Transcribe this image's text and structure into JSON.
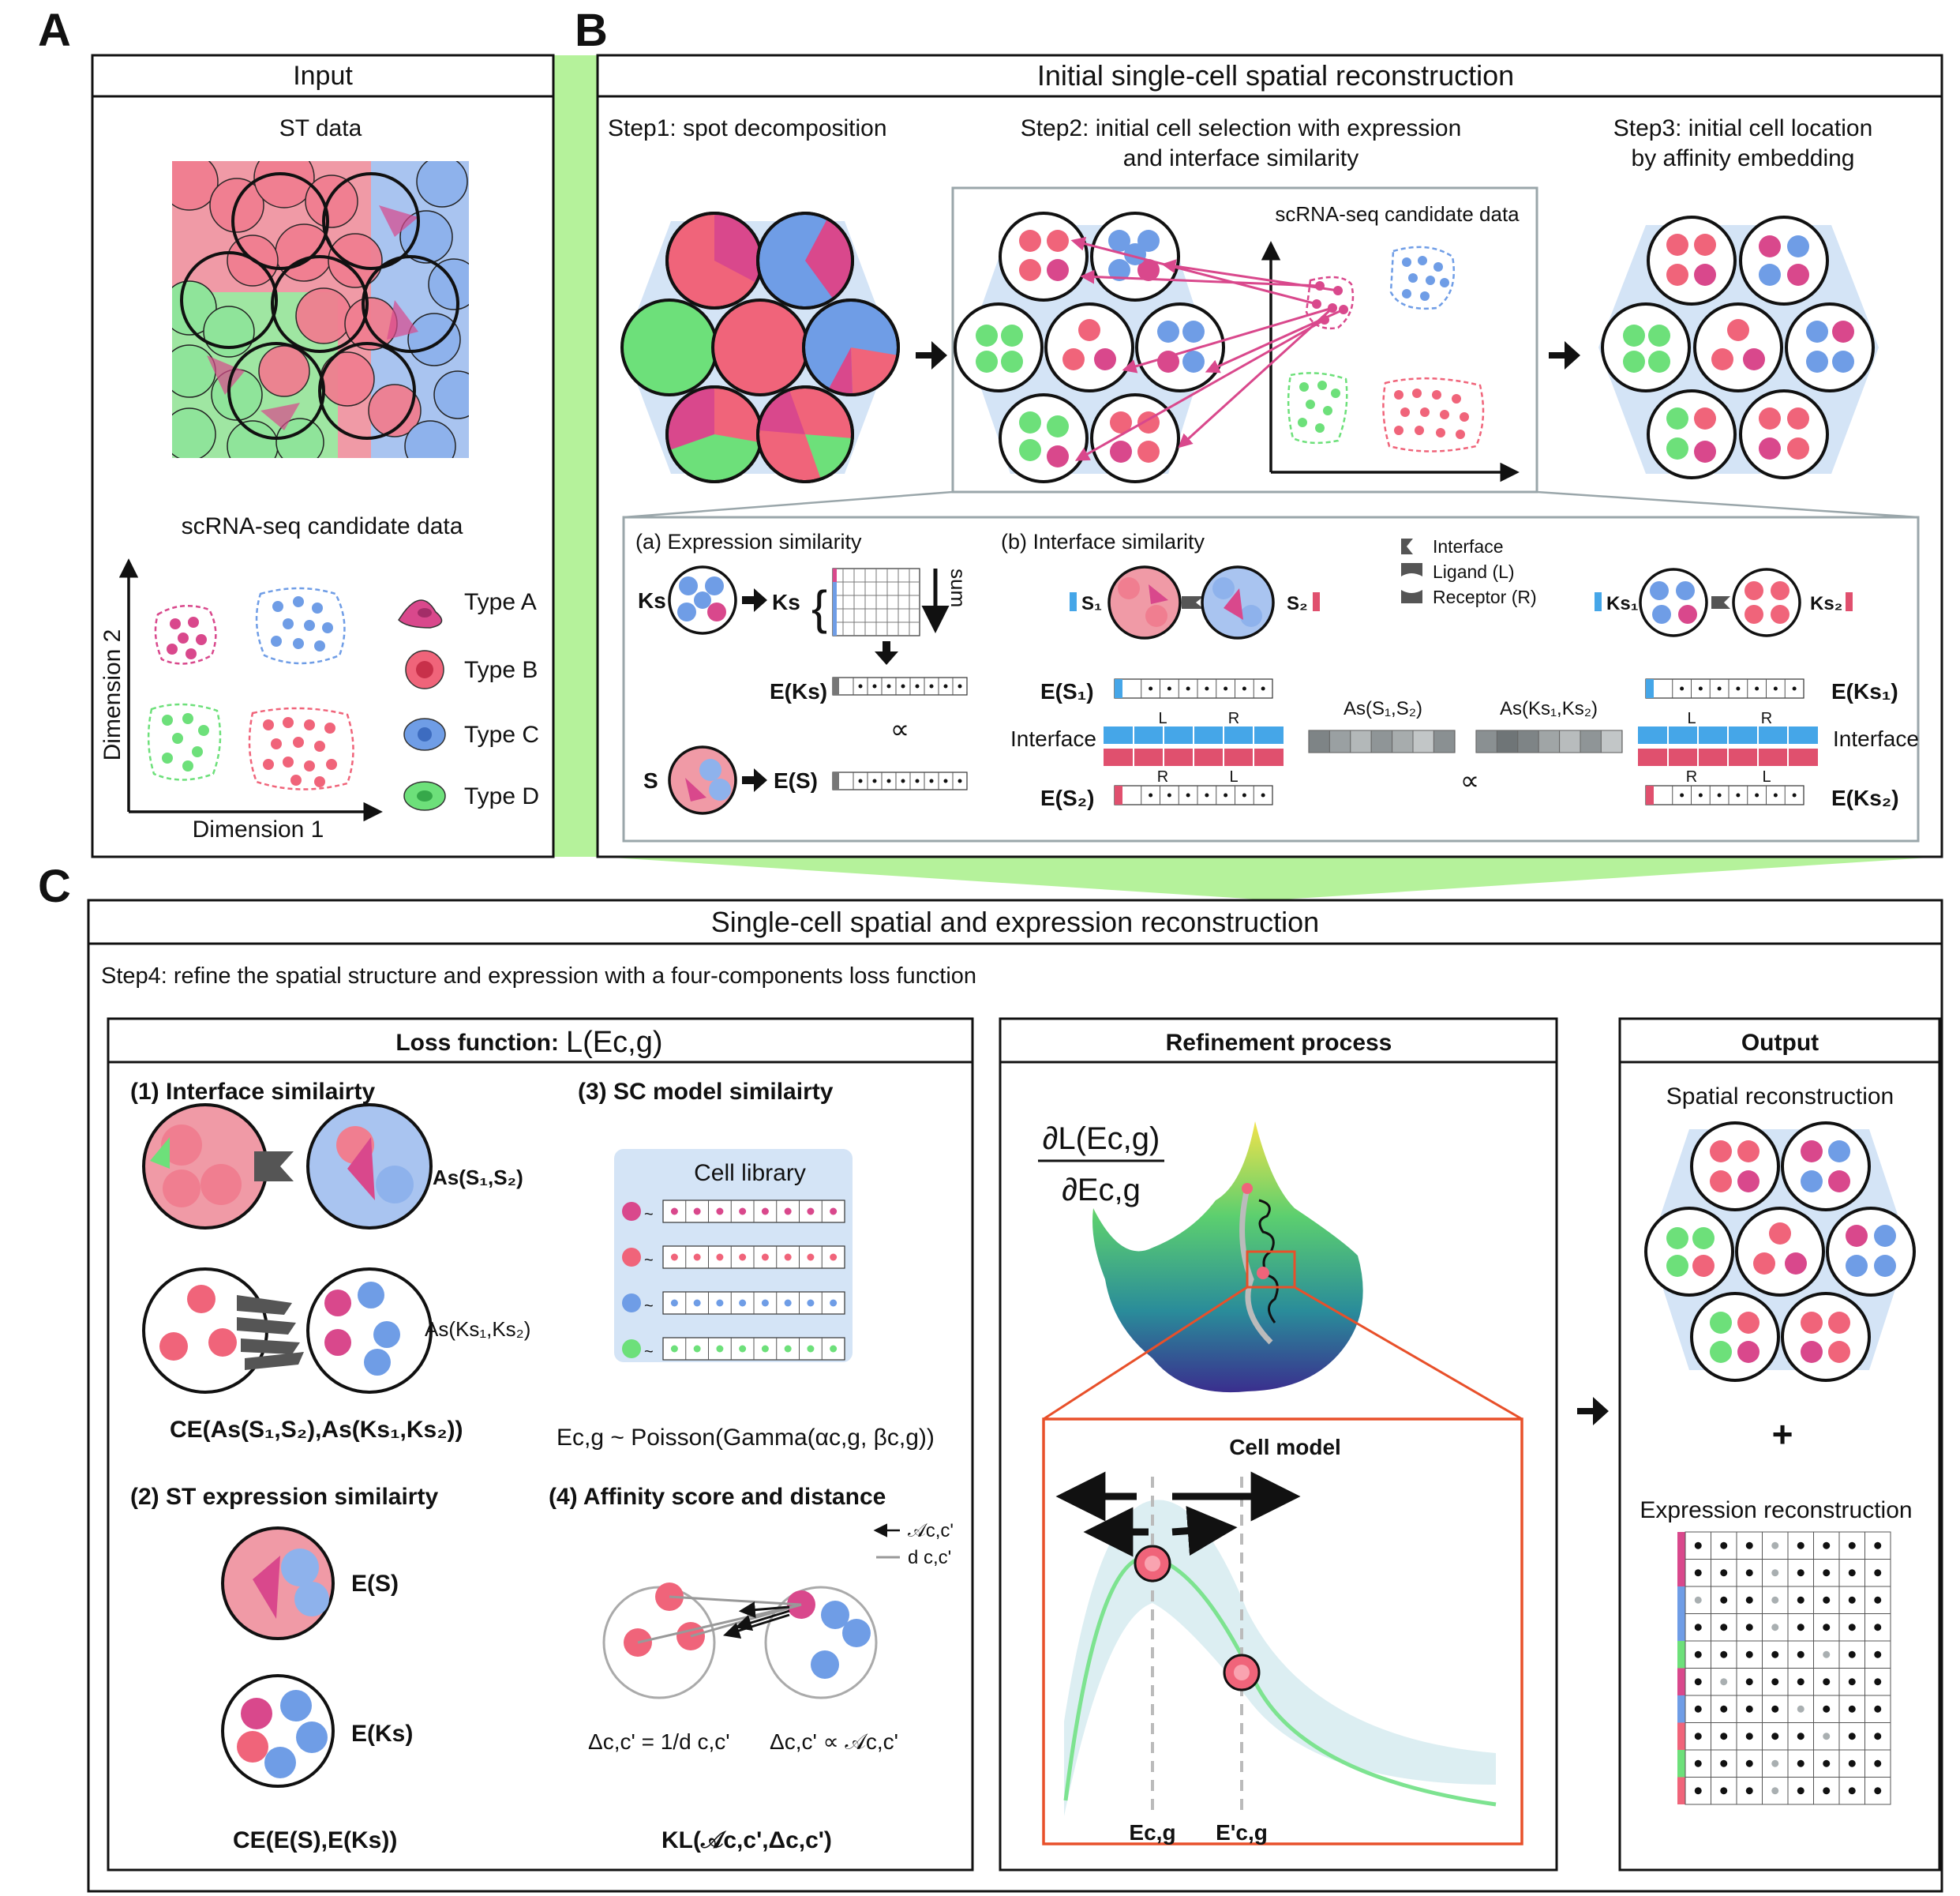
{
  "panels": {
    "a": {
      "letter": "A",
      "title": "Input",
      "st_label": "ST data",
      "sc_label": "scRNA-seq candidate data",
      "axis_x": "Dimension 1",
      "axis_y": "Dimension 2",
      "legend": [
        {
          "label": "Type A",
          "color": "#d9488c"
        },
        {
          "label": "Type B",
          "color": "#f0647a"
        },
        {
          "label": "Type C",
          "color": "#6f9de6"
        },
        {
          "label": "Type D",
          "color": "#6de07a"
        }
      ]
    },
    "b": {
      "letter": "B",
      "title": "Initial single-cell spatial reconstruction",
      "step1": "Step1: spot decomposition",
      "step2_line1": "Step2: initial cell selection with expression",
      "step2_line2": "and interface similarity",
      "step3_line1": "Step3: initial cell location",
      "step3_line2": "by affinity embedding",
      "candidate_label": "scRNA-seq candidate data",
      "sub_a": {
        "title": "(a) Expression similarity",
        "ks": "Ks",
        "sum": "sum",
        "e_ks": "E(Ks)",
        "proportional": "∝",
        "s": "S",
        "e_s": "E(S)"
      },
      "sub_b": {
        "title": "(b) Interface similarity",
        "legend_interface": "Interface",
        "legend_ligand": "Ligand (L)",
        "legend_receptor": "Receptor (R)",
        "s1": "S₁",
        "s2": "S₂",
        "ks1": "Ks₁",
        "ks2": "Ks₂",
        "e_s1": "E(S₁)",
        "e_s2": "E(S₂)",
        "e_ks1": "E(Ks₁)",
        "e_ks2": "E(Ks₂)",
        "interface": "Interface",
        "l": "L",
        "r": "R",
        "as_s": "As(S₁,S₂)",
        "as_ks": "As(Ks₁,Ks₂)",
        "proportional": "∝"
      }
    },
    "c": {
      "letter": "C",
      "title": "Single-cell spatial and expression reconstruction",
      "step4": "Step4: refine the spatial structure and expression with a four-components loss function",
      "loss": {
        "title": "Loss function:",
        "title_formula": "L(Ec,g)",
        "c1_title": "(1) Interface similairty",
        "c1_as_s": "As(S₁,S₂)",
        "c1_as_ks": "As(Ks₁,Ks₂)",
        "c1_formula": "CE(As(S₁,S₂),As(Ks₁,Ks₂))",
        "c2_title": "(2) ST expression similairty",
        "c2_es": "E(S)",
        "c2_eks": "E(Ks)",
        "c2_formula": "CE(E(S),E(Ks))",
        "c3_title": "(3) SC model similairty",
        "c3_library": "Cell library",
        "c3_formula": "Ec,g ~ Poisson(Gamma(αc,g, βc,g))",
        "c4_title": "(4) Affinity score and distance",
        "c4_legend_a": "𝒜c,c'",
        "c4_legend_d": "d c,c'",
        "c4_eq1": "Δc,c' = 1/d c,c'",
        "c4_eq2": "Δc,c' ∝ 𝒜c,c'",
        "c4_formula": "KL(𝒜c,c',Δc,c')"
      },
      "refine": {
        "title": "Refinement process",
        "grad_num": "∂L(Ec,g)",
        "grad_den": "∂Ec,g",
        "cell_model": "Cell model",
        "x1": "Ec,g",
        "x2": "E'c,g"
      },
      "output": {
        "title": "Output",
        "spatial": "Spatial reconstruction",
        "plus": "+",
        "expression": "Expression reconstruction"
      }
    }
  },
  "colors": {
    "type_a": "#d9488c",
    "type_b": "#f0647a",
    "type_c": "#6f9de6",
    "type_d": "#6de07a",
    "hex_bg": "#d4e4f6",
    "green_wedge": "#a8f08a",
    "zoom_frame": "#e8502a"
  }
}
